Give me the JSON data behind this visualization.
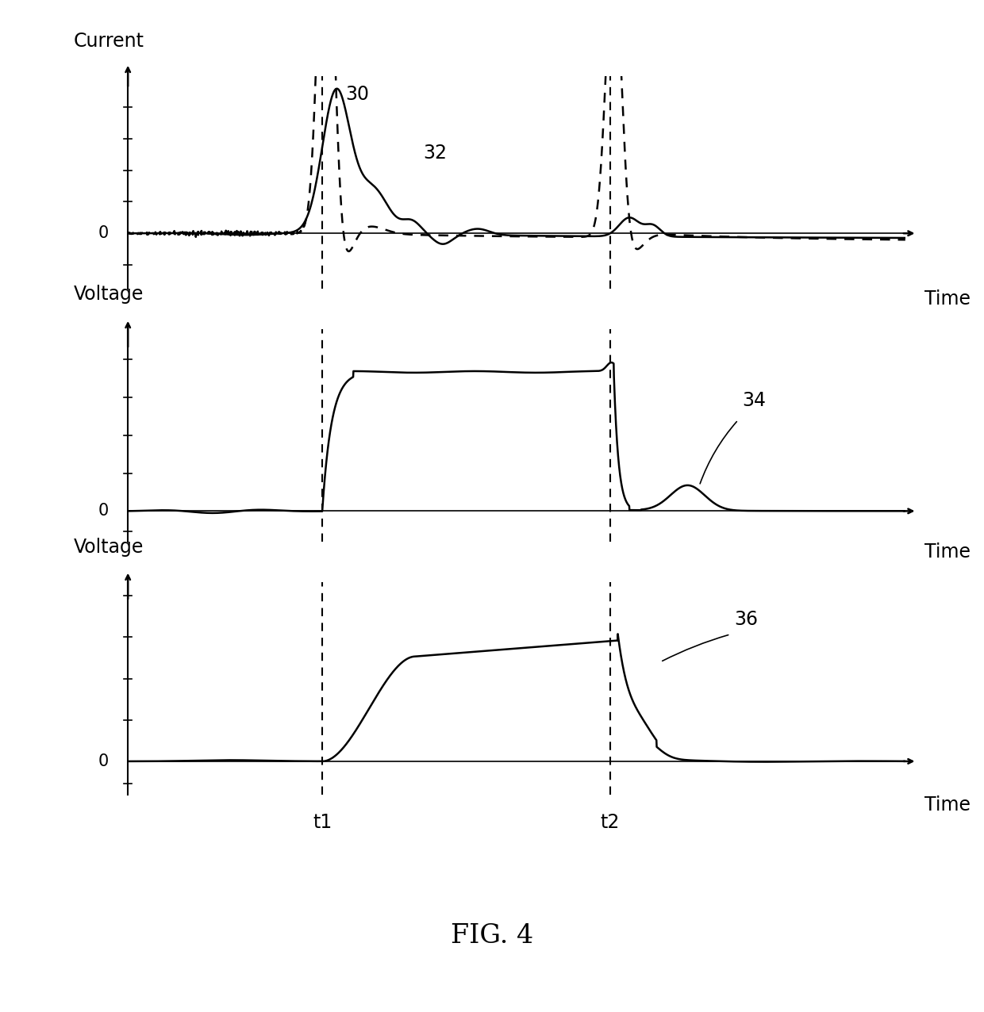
{
  "fig_width": 12.4,
  "fig_height": 12.76,
  "bg_color": "#ffffff",
  "line_color": "#000000",
  "t1": 0.25,
  "t2": 0.62,
  "panel1_ylabel": "Current",
  "panel2_ylabel": "Voltage",
  "panel3_ylabel": "Voltage",
  "xlabel": "Time",
  "label_t1": "t1",
  "label_t2": "t2",
  "label_30": "30",
  "label_32": "32",
  "label_34": "34",
  "label_36": "36",
  "fig_label": "FIG. 4",
  "font_size_axis": 15,
  "font_size_label": 17,
  "font_size_fig": 24
}
